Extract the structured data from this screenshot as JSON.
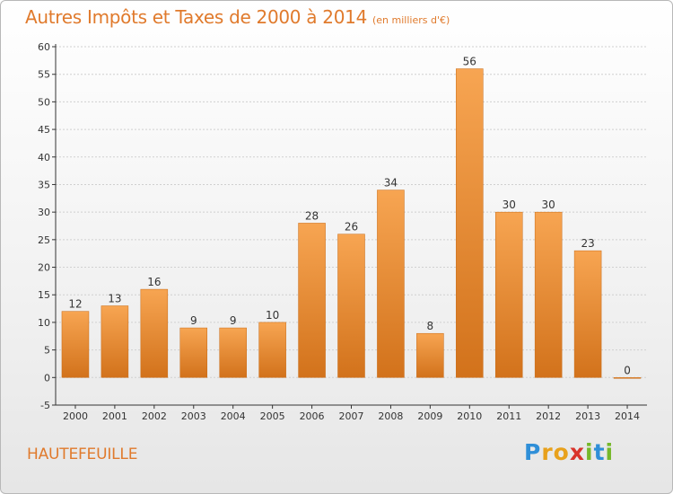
{
  "title": "Autres Impôts et Taxes de 2000 à 2014",
  "subtitle": "(en milliers d'€)",
  "commune": "HAUTEFEUILLE",
  "logo": {
    "letters": [
      "P",
      "r",
      "o",
      "x",
      "i",
      "t",
      "i"
    ],
    "colors": [
      "#2f8fd8",
      "#e8a11c",
      "#e8a11c",
      "#d9342b",
      "#76b82a",
      "#2f8fd8",
      "#76b82a"
    ]
  },
  "colors": {
    "bar_top": "#f7a552",
    "bar_bottom": "#d2721b",
    "axis": "#333333",
    "grid": "#d0d0d0"
  },
  "chart_data": {
    "type": "bar",
    "categories": [
      "2000",
      "2001",
      "2002",
      "2003",
      "2004",
      "2005",
      "2006",
      "2007",
      "2008",
      "2009",
      "2010",
      "2011",
      "2012",
      "2013",
      "2014"
    ],
    "values": [
      12,
      13,
      16,
      9,
      9,
      10,
      28,
      26,
      34,
      8,
      56,
      30,
      30,
      23,
      0
    ],
    "data_labels": [
      "12",
      "13",
      "16",
      "9",
      "9",
      "10",
      "28",
      "26",
      "34",
      "8",
      "56",
      "30",
      "30",
      "23",
      "0"
    ],
    "title": "Autres Impôts et Taxes de 2000 à 2014",
    "subtitle": "(en milliers d'€)",
    "xlabel": "",
    "ylabel": "",
    "ylim": [
      -5,
      60
    ],
    "yticks": [
      -5,
      0,
      5,
      10,
      15,
      20,
      25,
      30,
      35,
      40,
      45,
      50,
      55,
      60
    ],
    "grid": true
  }
}
